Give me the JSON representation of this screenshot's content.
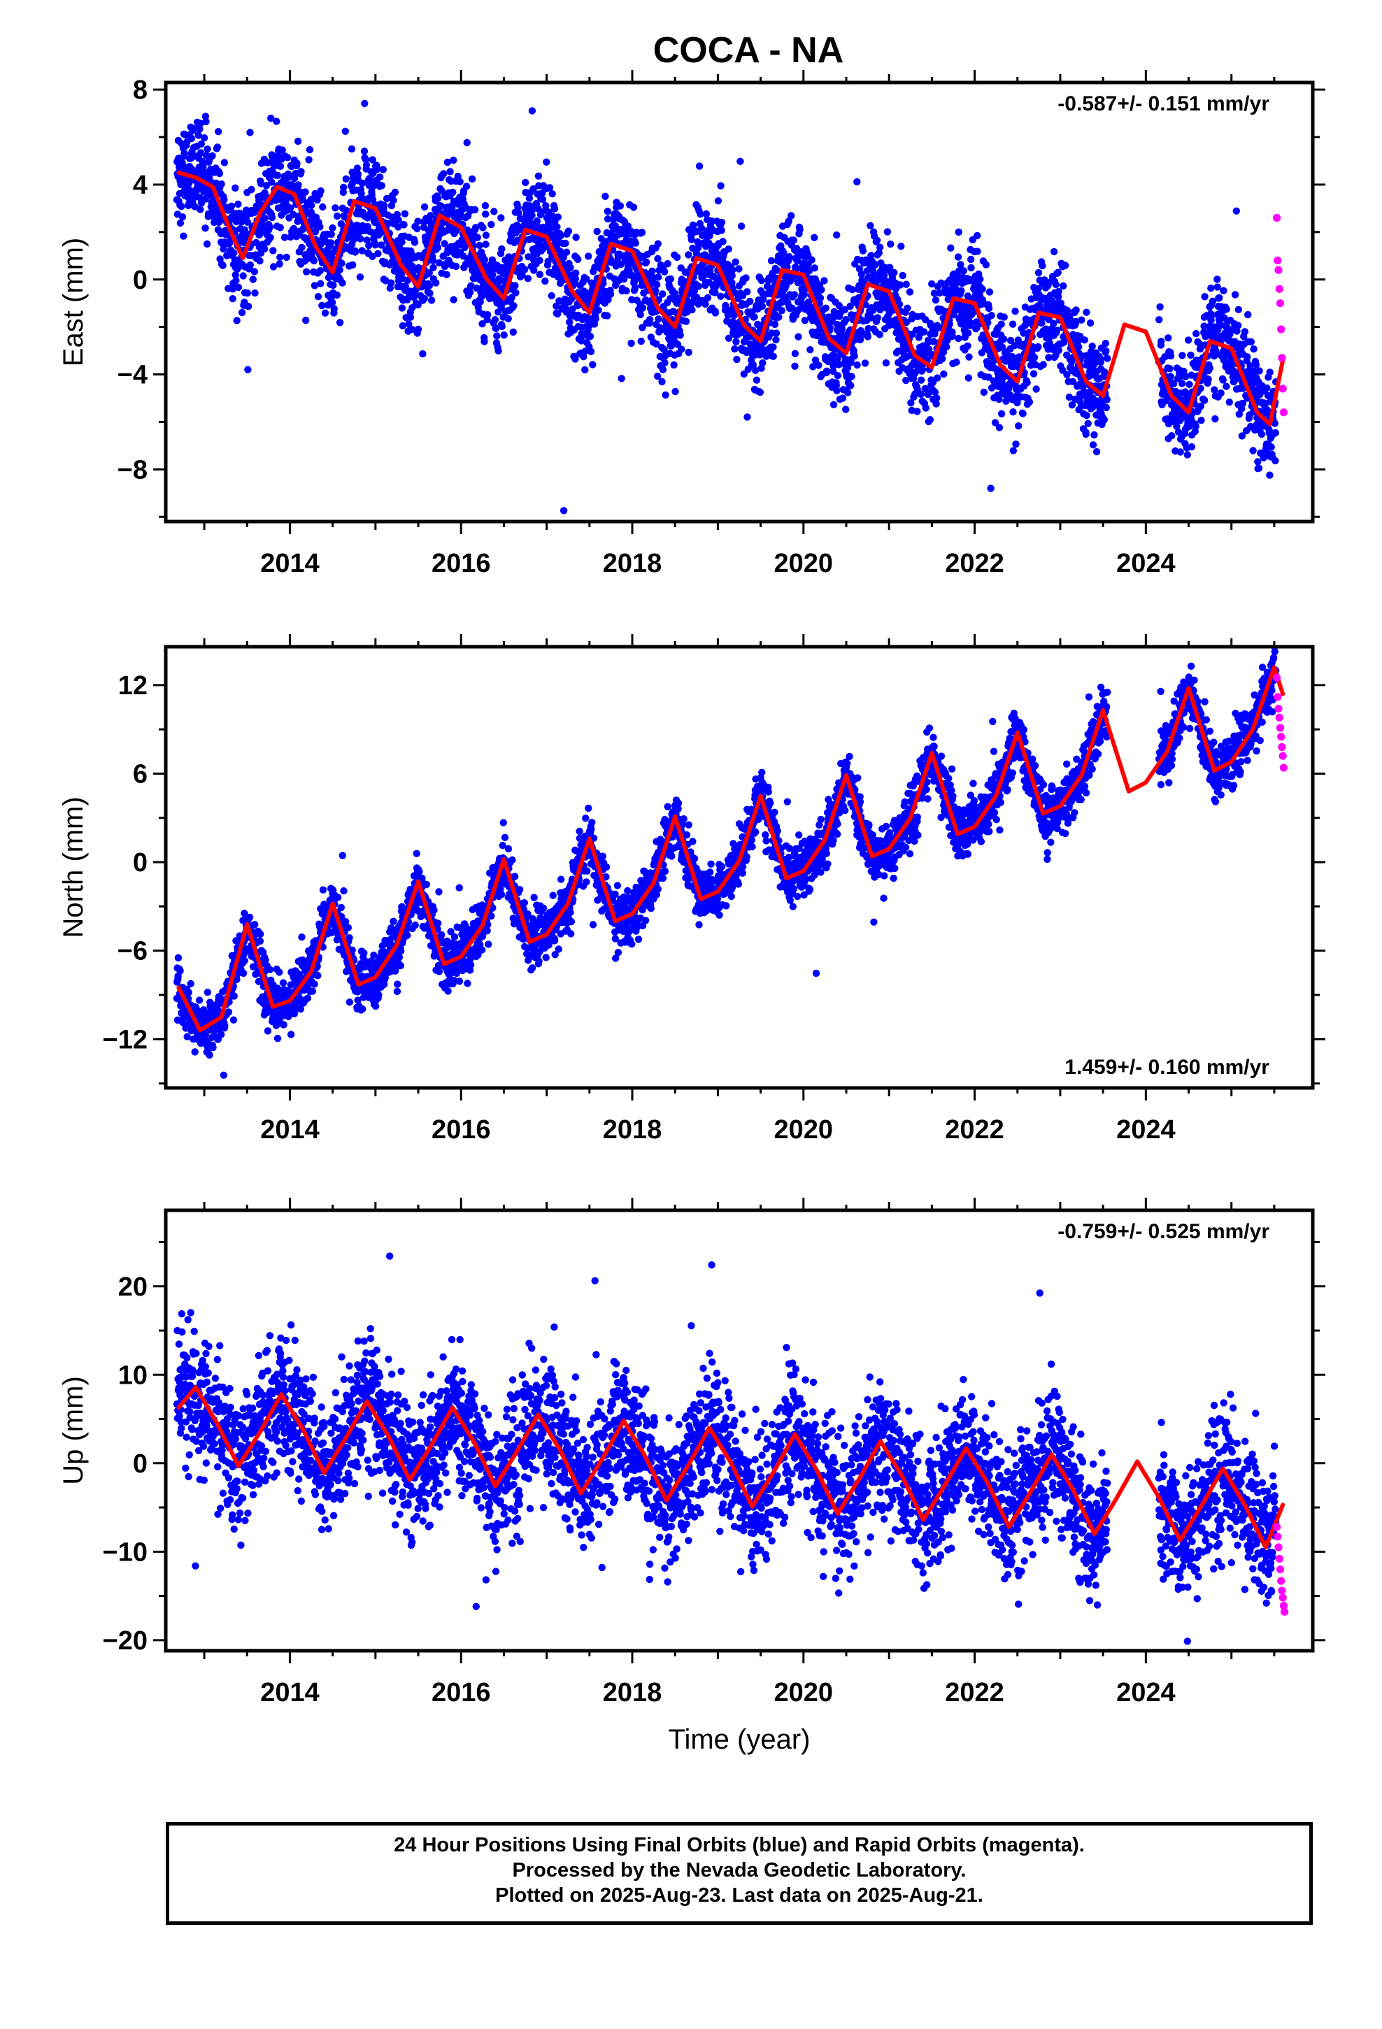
{
  "title": "COCA - NA",
  "colors": {
    "final": "#0000ff",
    "rapid": "#ff00ff",
    "model": "#ff0000",
    "axis": "#000000"
  },
  "footer": {
    "line1": "24 Hour Positions Using Final Orbits (blue) and Rapid Orbits (magenta).",
    "line2": "Processed by the Nevada Geodetic Laboratory.",
    "line3": "Plotted on 2025-Aug-23. Last data on 2025-Aug-21."
  },
  "chart_data": [
    {
      "type": "scatter",
      "ylabel": "East (mm)",
      "xlabel": "",
      "xlim": [
        2012.55,
        2025.95
      ],
      "ylim": [
        -10.2,
        8.3
      ],
      "x_ticks": [
        2014,
        2016,
        2018,
        2020,
        2022,
        2024
      ],
      "y_ticks": [
        -8,
        -4,
        0,
        4,
        8
      ],
      "rate_label": "-0.587+/- 0.151 mm/yr",
      "rate_position": "top-right",
      "model": {
        "x": [
          2012.7,
          2012.9,
          2013.1,
          2013.3,
          2013.45,
          2013.65,
          2013.85,
          2014.05,
          2014.3,
          2014.5,
          2014.75,
          2015.0,
          2015.3,
          2015.5,
          2015.75,
          2016.0,
          2016.3,
          2016.5,
          2016.75,
          2017.0,
          2017.3,
          2017.5,
          2017.75,
          2018.0,
          2018.3,
          2018.5,
          2018.75,
          2019.0,
          2019.3,
          2019.5,
          2019.75,
          2020.0,
          2020.3,
          2020.5,
          2020.75,
          2021.0,
          2021.3,
          2021.5,
          2021.75,
          2022.0,
          2022.3,
          2022.5,
          2022.75,
          2023.0,
          2023.3,
          2023.5,
          2023.75,
          2024.0,
          2024.3,
          2024.5,
          2024.75,
          2025.0,
          2025.3,
          2025.45,
          2025.6
        ],
        "y": [
          4.5,
          4.3,
          3.9,
          2.1,
          0.9,
          2.8,
          3.9,
          3.6,
          1.4,
          0.3,
          3.3,
          3.0,
          0.6,
          -0.3,
          2.7,
          2.2,
          0.0,
          -0.8,
          2.1,
          1.8,
          -0.5,
          -1.4,
          1.5,
          1.2,
          -1.2,
          -2.0,
          0.9,
          0.6,
          -1.9,
          -2.6,
          0.4,
          0.2,
          -2.5,
          -3.1,
          -0.2,
          -0.5,
          -3.2,
          -3.7,
          -0.8,
          -1.0,
          -3.6,
          -4.3,
          -1.4,
          -1.6,
          -4.3,
          -4.9,
          -1.9,
          -2.2,
          -4.9,
          -5.6,
          -2.6,
          -2.9,
          -5.6,
          -6.1,
          -3.4
        ]
      },
      "scatter_fit": {
        "rate": -0.587,
        "y_at_2012_7": 2.9,
        "amplitude": 2.1,
        "noise": 1.1
      },
      "gap": [
        2023.55,
        2024.15
      ],
      "rapid": {
        "x": [
          2025.53,
          2025.54,
          2025.55,
          2025.56,
          2025.57,
          2025.58,
          2025.59,
          2025.6,
          2025.61
        ],
        "y": [
          2.6,
          0.8,
          0.4,
          -0.4,
          -1.0,
          -2.1,
          -3.3,
          -4.6,
          -5.6
        ]
      }
    },
    {
      "type": "scatter",
      "ylabel": "North (mm)",
      "xlabel": "",
      "xlim": [
        2012.55,
        2025.95
      ],
      "ylim": [
        -15.3,
        14.6
      ],
      "x_ticks": [
        2014,
        2016,
        2018,
        2020,
        2022,
        2024
      ],
      "y_ticks": [
        -12,
        -6,
        0,
        6,
        12
      ],
      "rate_label": "1.459+/- 0.160 mm/yr",
      "rate_position": "bottom-right",
      "model": {
        "x": [
          2012.7,
          2012.95,
          2013.2,
          2013.5,
          2013.8,
          2014.0,
          2014.25,
          2014.5,
          2014.8,
          2015.0,
          2015.25,
          2015.5,
          2015.8,
          2016.0,
          2016.25,
          2016.5,
          2016.8,
          2017.0,
          2017.25,
          2017.5,
          2017.8,
          2018.0,
          2018.25,
          2018.5,
          2018.8,
          2019.0,
          2019.25,
          2019.5,
          2019.8,
          2020.0,
          2020.25,
          2020.5,
          2020.8,
          2021.0,
          2021.25,
          2021.5,
          2021.8,
          2022.0,
          2022.25,
          2022.5,
          2022.8,
          2023.0,
          2023.25,
          2023.5,
          2023.8,
          2024.0,
          2024.25,
          2024.5,
          2024.8,
          2025.0,
          2025.25,
          2025.5,
          2025.6
        ],
        "y": [
          -8.5,
          -11.4,
          -10.5,
          -4.2,
          -9.8,
          -9.4,
          -7.4,
          -2.8,
          -8.3,
          -7.8,
          -5.6,
          -1.3,
          -6.9,
          -6.4,
          -4.3,
          0.2,
          -5.4,
          -4.9,
          -2.8,
          1.6,
          -4.0,
          -3.5,
          -1.4,
          3.1,
          -2.5,
          -2.0,
          0.1,
          4.5,
          -1.1,
          -0.6,
          1.5,
          5.9,
          0.4,
          0.9,
          3.0,
          7.4,
          1.9,
          2.4,
          4.5,
          8.8,
          3.3,
          3.8,
          5.9,
          10.3,
          4.8,
          5.4,
          7.5,
          11.8,
          6.2,
          6.8,
          9.0,
          13.2,
          11.4
        ]
      },
      "scatter_fit": {
        "rate": 1.459,
        "y_at_2012_7": -9.9,
        "amplitude": 2.8,
        "noise": 0.9
      },
      "gap": [
        2023.55,
        2024.15
      ],
      "rapid": {
        "x": [
          2025.53,
          2025.54,
          2025.55,
          2025.56,
          2025.57,
          2025.58,
          2025.59,
          2025.6,
          2025.61
        ],
        "y": [
          12.5,
          11.2,
          10.4,
          9.8,
          9.1,
          8.5,
          7.8,
          7.2,
          6.4
        ]
      }
    },
    {
      "type": "scatter",
      "ylabel": "Up (mm)",
      "xlabel": "Time (year)",
      "xlim": [
        2012.55,
        2025.95
      ],
      "ylim": [
        -21.2,
        28.6
      ],
      "x_ticks": [
        2014,
        2016,
        2018,
        2020,
        2022,
        2024
      ],
      "y_ticks": [
        -20,
        -10,
        0,
        10,
        20
      ],
      "rate_label": "-0.759+/- 0.525 mm/yr",
      "rate_position": "top-right",
      "model": {
        "x": [
          2012.7,
          2012.9,
          2013.15,
          2013.4,
          2013.65,
          2013.9,
          2014.15,
          2014.4,
          2014.65,
          2014.9,
          2015.15,
          2015.4,
          2015.65,
          2015.9,
          2016.15,
          2016.4,
          2016.65,
          2016.9,
          2017.15,
          2017.4,
          2017.65,
          2017.9,
          2018.15,
          2018.4,
          2018.65,
          2018.9,
          2019.15,
          2019.4,
          2019.65,
          2019.9,
          2020.15,
          2020.4,
          2020.65,
          2020.9,
          2021.15,
          2021.4,
          2021.65,
          2021.9,
          2022.15,
          2022.4,
          2022.65,
          2022.9,
          2023.15,
          2023.4,
          2023.65,
          2023.9,
          2024.15,
          2024.4,
          2024.65,
          2024.9,
          2025.15,
          2025.4,
          2025.6
        ],
        "y": [
          6.3,
          8.6,
          4.5,
          -0.3,
          3.5,
          7.8,
          3.9,
          -1.1,
          2.8,
          7.0,
          3.1,
          -1.9,
          2.0,
          6.3,
          2.4,
          -2.6,
          1.3,
          5.5,
          1.6,
          -3.4,
          0.5,
          4.8,
          0.8,
          -4.2,
          -0.3,
          4.0,
          0.1,
          -4.9,
          -1.0,
          3.3,
          -0.7,
          -5.7,
          -1.8,
          2.5,
          -1.4,
          -6.4,
          -2.5,
          1.7,
          -2.2,
          -7.2,
          -3.3,
          1.0,
          -3.0,
          -8.0,
          -4.1,
          0.2,
          -3.8,
          -8.7,
          -4.8,
          -0.6,
          -4.6,
          -9.5,
          -4.7
        ]
      },
      "scatter_fit": {
        "rate": -0.759,
        "y_at_2012_7": 4.3,
        "amplitude": 4.3,
        "noise": 3.6
      },
      "gap": [
        2023.55,
        2024.15
      ],
      "rapid": {
        "x": [
          2025.53,
          2025.54,
          2025.55,
          2025.56,
          2025.57,
          2025.58,
          2025.59,
          2025.6,
          2025.61,
          2025.62
        ],
        "y": [
          -7.2,
          -8.3,
          -9.5,
          -10.8,
          -12.0,
          -13.3,
          -14.4,
          -15.2,
          -16.1,
          -16.8
        ]
      }
    }
  ]
}
